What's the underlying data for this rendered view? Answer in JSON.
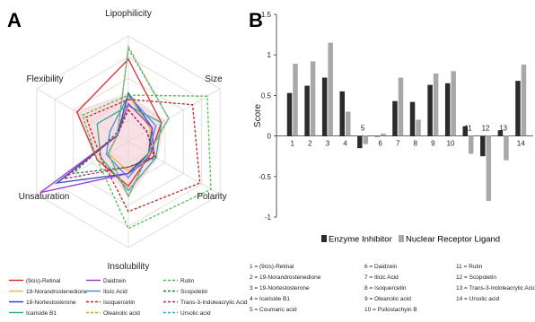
{
  "chart_data": [
    {
      "panel": "A",
      "type": "radar",
      "axes": [
        "Lipophilicity",
        "Size",
        "Polarity",
        "Insolubility",
        "Unsaturation",
        "Flexibility"
      ],
      "grid": true,
      "legend_position": "bottom",
      "series": [
        {
          "name": "(9cis)-Retinal",
          "color": "#d62728",
          "dash": false,
          "values": [
            0.78,
            0.36,
            0.24,
            0.42,
            0.34,
            0.56
          ]
        },
        {
          "name": "19-Norandrostenedione",
          "color": "#e8b830",
          "dash": false,
          "values": [
            0.44,
            0.24,
            0.22,
            0.28,
            0.22,
            0.12
          ]
        },
        {
          "name": "19-Nortestosterone",
          "color": "#1f3fbf",
          "dash": false,
          "values": [
            0.46,
            0.26,
            0.22,
            0.3,
            0.78,
            0.12
          ]
        },
        {
          "name": "Icariside B1",
          "color": "#2ca88a",
          "dash": false,
          "values": [
            0.34,
            0.36,
            0.3,
            0.46,
            0.3,
            0.34
          ]
        },
        {
          "name": "Daidzein",
          "color": "#9b30d0",
          "dash": false,
          "values": [
            0.36,
            0.26,
            0.28,
            0.3,
            0.96,
            0.12
          ]
        },
        {
          "name": "Ilicic Acid",
          "color": "#3a8ee0",
          "dash": false,
          "values": [
            0.44,
            0.3,
            0.22,
            0.34,
            0.24,
            0.2
          ]
        },
        {
          "name": "Isoquercetin",
          "color": "#c01a1a",
          "dash": true,
          "values": [
            0.4,
            0.7,
            0.78,
            0.66,
            0.3,
            0.46
          ]
        },
        {
          "name": "Oleanolic acid",
          "color": "#e0a020",
          "dash": true,
          "values": [
            0.9,
            0.44,
            0.22,
            0.52,
            0.22,
            0.12
          ]
        },
        {
          "name": "Rutin",
          "color": "#3fbf3f",
          "dash": true,
          "values": [
            0.44,
            0.86,
            0.9,
            0.82,
            0.34,
            0.5
          ]
        },
        {
          "name": "Scopoletin",
          "color": "#1a7a3a",
          "dash": true,
          "values": [
            0.3,
            0.2,
            0.3,
            0.24,
            0.6,
            0.14
          ]
        },
        {
          "name": "Trans-3-Indoleacrylic Acid",
          "color": "#c02060",
          "dash": true,
          "values": [
            0.3,
            0.2,
            0.28,
            0.24,
            0.7,
            0.12
          ]
        },
        {
          "name": "Ursolic acid",
          "color": "#20b0c0",
          "dash": true,
          "values": [
            0.88,
            0.44,
            0.22,
            0.52,
            0.22,
            0.12
          ]
        }
      ],
      "legend_truncated": [
        "Icariside B1",
        "Oleanolic acid",
        "Ursolic acid"
      ]
    },
    {
      "panel": "B",
      "type": "bar",
      "ylabel": "Score",
      "ylim": [
        -1,
        1.5
      ],
      "yticks": [
        -1,
        -0.5,
        0,
        0.5,
        1,
        1.5
      ],
      "categories": [
        "1",
        "2",
        "3",
        "4",
        "5",
        "6",
        "7",
        "8",
        "9",
        "10",
        "11",
        "12",
        "13",
        "14"
      ],
      "series": [
        {
          "name": "Enzyme Inhibitor",
          "color": "#2b2b2b",
          "values": [
            0.53,
            0.62,
            0.72,
            0.55,
            -0.15,
            0.0,
            0.43,
            0.42,
            0.63,
            0.65,
            0.12,
            -0.25,
            0.07,
            0.68
          ]
        },
        {
          "name": "Nuclear Receptor Ligand",
          "color": "#a8a8a8",
          "values": [
            0.89,
            0.92,
            1.15,
            0.3,
            -0.1,
            0.03,
            0.72,
            0.2,
            0.77,
            0.8,
            -0.22,
            -0.8,
            -0.3,
            0.88
          ]
        }
      ],
      "legend_position": "bottom",
      "key": [
        "1 = (9cis)-Retinal",
        "2 = 19-Norandrostenedione",
        "3 = 19-Nortestosterone",
        "4 = Icariside B1",
        "5 = Coumaric acid",
        "6 = Daidzein",
        "7 = Ilicic Acid",
        "8 = Isoquercetin",
        "9 = Oleanolic acid",
        "10 = Psilostachyin B",
        "11 = Rutin",
        "12 = Scopoletin",
        "13 = Trans-3-Indoleacrylic Acid",
        "14 = Ursolic acid"
      ]
    }
  ]
}
